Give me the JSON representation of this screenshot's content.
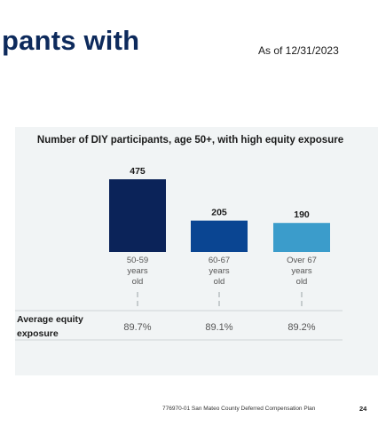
{
  "header": {
    "title": "pants with",
    "as_of": "As of 12/31/2023"
  },
  "chart_data": {
    "type": "bar",
    "title": "Number of DIY participants, age 50+, with high equity exposure",
    "categories": [
      [
        "50-59",
        "years",
        "old"
      ],
      [
        "60-67",
        "years",
        "old"
      ],
      [
        "Over 67",
        "years",
        "old"
      ]
    ],
    "values": [
      475,
      205,
      190
    ],
    "bar_colors": [
      "#0b2359",
      "#0a4592",
      "#3b9ccb"
    ],
    "ylim": [
      0,
      500
    ],
    "grid": false,
    "table": {
      "row_label": "Average equity exposure",
      "values": [
        "89.7%",
        "89.1%",
        "89.2%"
      ]
    }
  },
  "footer": {
    "text": "776970-01 San Mateo County Deferred Compensation Plan",
    "page": "24"
  }
}
